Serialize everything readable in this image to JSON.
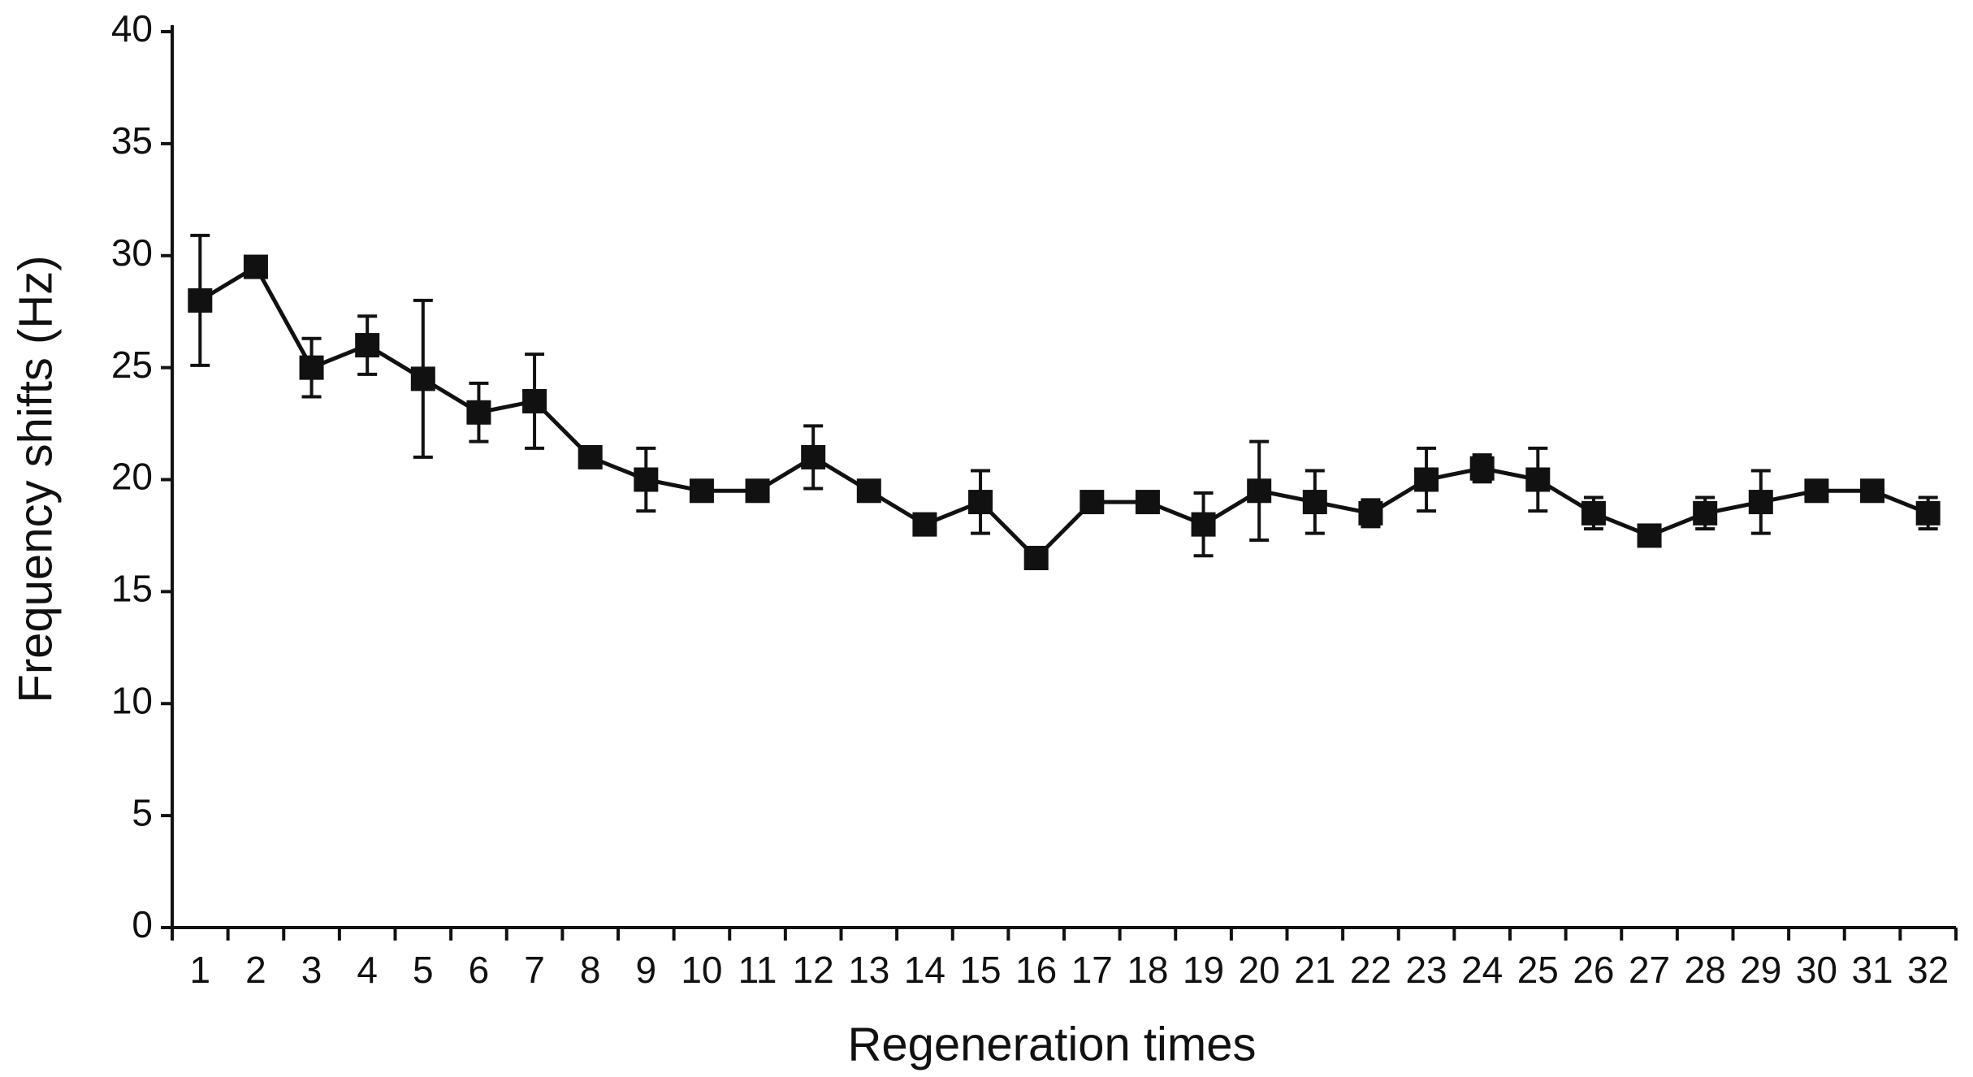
{
  "chart_data": {
    "type": "line",
    "x_label": "Regeneration times",
    "y_label": "Frequency shifts (Hz)",
    "categories": [
      "1",
      "2",
      "3",
      "4",
      "5",
      "6",
      "7",
      "8",
      "9",
      "10",
      "11",
      "12",
      "13",
      "14",
      "15",
      "16",
      "17",
      "18",
      "19",
      "20",
      "21",
      "22",
      "23",
      "24",
      "25",
      "26",
      "27",
      "28",
      "29",
      "30",
      "31",
      "32"
    ],
    "series": [
      {
        "name": "Frequency shifts",
        "color": "#111111",
        "values": [
          28,
          29.5,
          25,
          26,
          24.5,
          23,
          23.5,
          21,
          20,
          19.5,
          19.5,
          21,
          19.5,
          18,
          19,
          16.5,
          19,
          19,
          18,
          19.5,
          19,
          18.5,
          20,
          20.5,
          20,
          18.5,
          17.5,
          18.5,
          19,
          19.5,
          19.5,
          18.5
        ],
        "errors": [
          2.9,
          null,
          1.3,
          1.3,
          3.5,
          1.3,
          2.1,
          null,
          1.4,
          null,
          null,
          1.4,
          null,
          null,
          1.4,
          null,
          null,
          null,
          1.4,
          2.2,
          1.4,
          0.6,
          1.4,
          0.6,
          1.4,
          0.7,
          null,
          0.7,
          1.4,
          null,
          null,
          0.7
        ]
      }
    ],
    "ylim": [
      0,
      40
    ],
    "yticks": [
      0,
      5,
      10,
      15,
      20,
      25,
      30,
      35,
      40
    ]
  }
}
